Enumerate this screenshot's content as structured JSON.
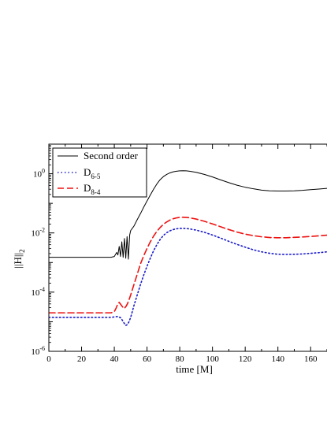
{
  "chart_data": {
    "type": "line",
    "xlabel": "time [M]",
    "ylabel": "||H||",
    "ylabel_sub": "2",
    "yscale": "log",
    "xlim": [
      0,
      170
    ],
    "ylim": [
      1e-06,
      10
    ],
    "x_ticks": [
      0,
      20,
      40,
      60,
      80,
      100,
      120,
      140,
      160
    ],
    "y_ticks": [
      {
        "value": 1,
        "base": "10",
        "exp": "0"
      },
      {
        "value": 0.01,
        "base": "10",
        "exp": "-2"
      },
      {
        "value": 0.0001,
        "base": "10",
        "exp": "-4"
      },
      {
        "value": 1e-06,
        "base": "10",
        "exp": "-6"
      }
    ],
    "legend_position": "top-left",
    "series": [
      {
        "name": "Second order",
        "name_main": "Second order",
        "name_sub": "",
        "color": "#000000",
        "dash": "",
        "x": [
          0,
          5,
          10,
          20,
          30,
          38,
          40,
          41.5,
          42.2,
          43,
          43.8,
          44.6,
          45.4,
          46.2,
          47,
          47.8,
          48.6,
          49.4,
          50,
          52,
          54,
          56,
          58,
          60,
          62,
          64,
          66,
          68,
          70,
          72,
          74,
          76,
          78,
          80,
          82,
          84,
          86,
          90,
          95,
          100,
          105,
          110,
          115,
          120,
          125,
          130,
          135,
          140,
          145,
          150,
          155,
          160,
          165,
          170
        ],
        "y": [
          0.0015,
          0.0015,
          0.0015,
          0.0015,
          0.0015,
          0.0015,
          0.0016,
          0.0022,
          0.0018,
          0.0035,
          0.0016,
          0.005,
          0.0015,
          0.0065,
          0.0014,
          0.0075,
          0.0013,
          0.0085,
          0.012,
          0.017,
          0.028,
          0.045,
          0.075,
          0.12,
          0.19,
          0.3,
          0.45,
          0.63,
          0.8,
          0.95,
          1.07,
          1.16,
          1.22,
          1.25,
          1.26,
          1.25,
          1.22,
          1.12,
          0.95,
          0.78,
          0.62,
          0.5,
          0.41,
          0.35,
          0.31,
          0.28,
          0.265,
          0.26,
          0.26,
          0.265,
          0.275,
          0.29,
          0.305,
          0.32
        ]
      },
      {
        "name": "D6-5",
        "name_main": "D",
        "name_sub": "6-5",
        "color": "#1a1acc",
        "dash": "1.5,3",
        "x": [
          0,
          10,
          20,
          30,
          38,
          40,
          42,
          44,
          45,
          46,
          47,
          48,
          49,
          50,
          51,
          52,
          54,
          56,
          58,
          60,
          62,
          64,
          66,
          68,
          70,
          72,
          74,
          76,
          78,
          80,
          82,
          84,
          86,
          90,
          95,
          100,
          105,
          110,
          115,
          120,
          125,
          130,
          135,
          140,
          145,
          150,
          155,
          160,
          165,
          170
        ],
        "y": [
          1.4e-05,
          1.4e-05,
          1.4e-05,
          1.4e-05,
          1.4e-05,
          1.45e-05,
          1.5e-05,
          1.35e-05,
          1.1e-05,
          9e-06,
          7.5e-06,
          8e-06,
          1e-05,
          1.4e-05,
          2.2e-05,
          3.5e-05,
          8e-05,
          0.00018,
          0.00038,
          0.00075,
          0.0014,
          0.0025,
          0.004,
          0.006,
          0.0082,
          0.0102,
          0.0118,
          0.013,
          0.0138,
          0.0142,
          0.0143,
          0.0141,
          0.0137,
          0.0125,
          0.0105,
          0.0085,
          0.0067,
          0.0052,
          0.0041,
          0.0033,
          0.0027,
          0.0023,
          0.00205,
          0.0019,
          0.00188,
          0.0019,
          0.00195,
          0.00205,
          0.00215,
          0.0023
        ]
      },
      {
        "name": "D8-4",
        "name_main": "D",
        "name_sub": "8-4",
        "color": "#ee1111",
        "dash": "8,4",
        "x": [
          0,
          10,
          20,
          30,
          38,
          40,
          41,
          42,
          43,
          44,
          45,
          46,
          47,
          48,
          49,
          50,
          52,
          54,
          56,
          58,
          60,
          62,
          64,
          66,
          68,
          70,
          72,
          74,
          76,
          78,
          80,
          82,
          84,
          86,
          90,
          95,
          100,
          105,
          110,
          115,
          120,
          125,
          130,
          135,
          140,
          145,
          150,
          155,
          160,
          165,
          170
        ],
        "y": [
          2e-05,
          2e-05,
          2e-05,
          2e-05,
          2e-05,
          2.2e-05,
          2.8e-05,
          3.8e-05,
          4.5e-05,
          3.8e-05,
          3.2e-05,
          2.8e-05,
          3.2e-05,
          4e-05,
          5.5e-05,
          8e-05,
          0.00018,
          0.0004,
          0.0009,
          0.0017,
          0.003,
          0.005,
          0.0078,
          0.0113,
          0.0152,
          0.0195,
          0.0235,
          0.0272,
          0.0302,
          0.0322,
          0.0335,
          0.0338,
          0.0334,
          0.0325,
          0.0295,
          0.0248,
          0.0202,
          0.0162,
          0.013,
          0.0107,
          0.0091,
          0.0081,
          0.0074,
          0.007,
          0.0069,
          0.0069,
          0.0071,
          0.0073,
          0.0076,
          0.008,
          0.0084
        ]
      }
    ]
  }
}
